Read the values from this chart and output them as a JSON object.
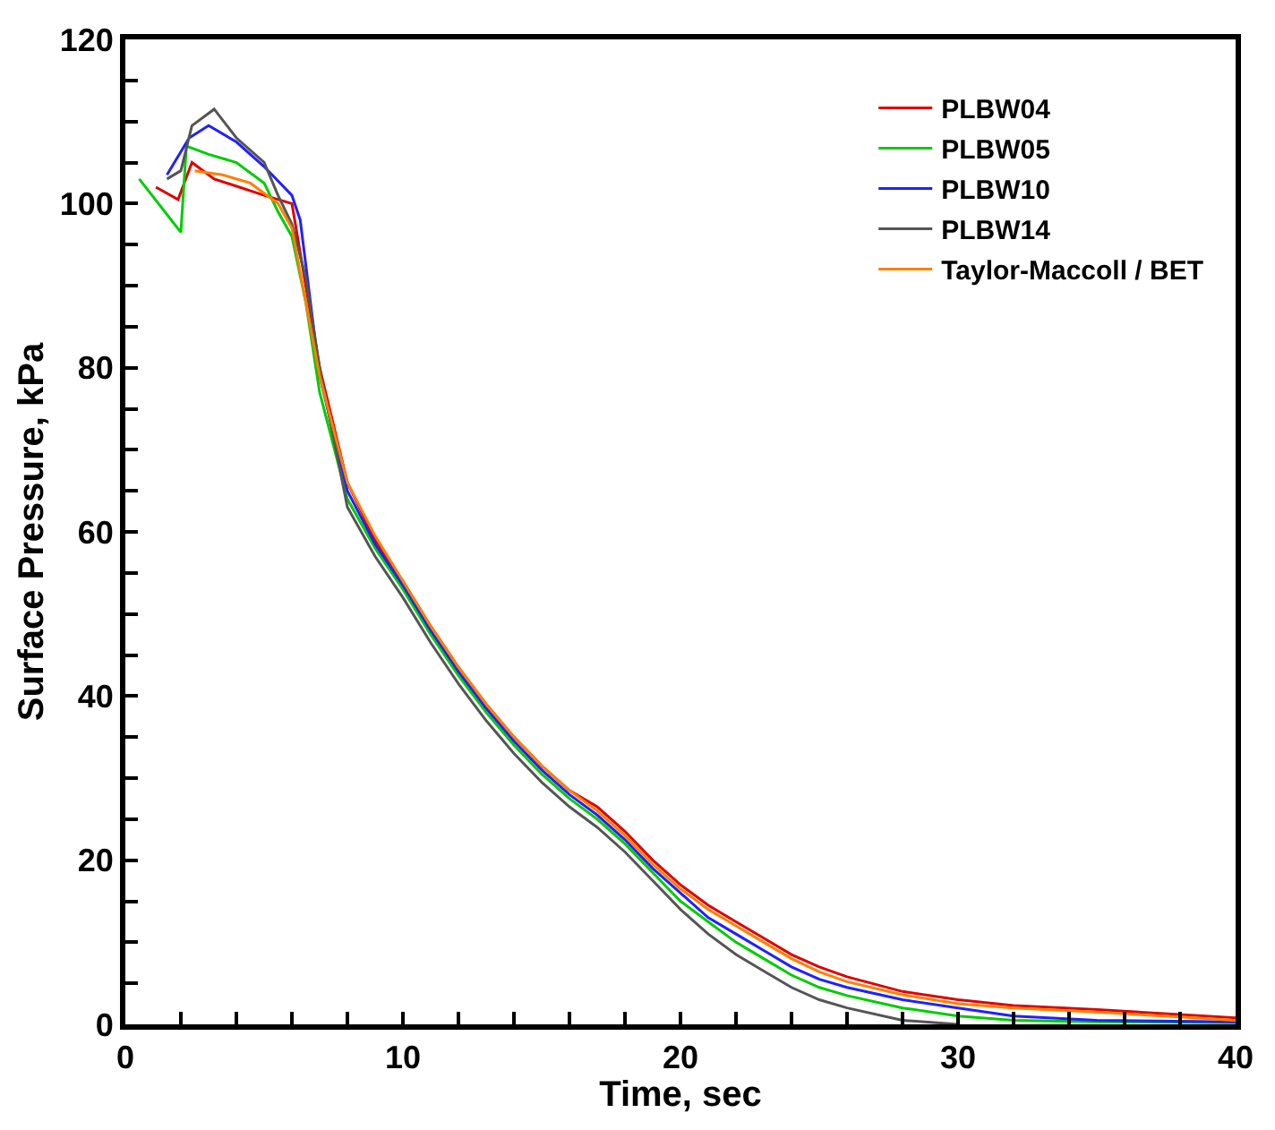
{
  "chart_data": {
    "type": "line",
    "xlabel": "Time, sec",
    "ylabel": "Surface Pressure, kPa",
    "xlim": [
      0,
      40
    ],
    "ylim": [
      0,
      120
    ],
    "xticks": [
      0,
      {
        "value": 2,
        "label": null
      },
      {
        "value": 4,
        "label": null
      },
      {
        "value": 6,
        "label": null
      },
      {
        "value": 8,
        "label": null
      },
      10,
      {
        "value": 12,
        "label": null
      },
      {
        "value": 14,
        "label": null
      },
      {
        "value": 16,
        "label": null
      },
      {
        "value": 18,
        "label": null
      },
      20,
      {
        "value": 22,
        "label": null
      },
      {
        "value": 24,
        "label": null
      },
      {
        "value": 26,
        "label": null
      },
      {
        "value": 28,
        "label": null
      },
      30,
      {
        "value": 32,
        "label": null
      },
      {
        "value": 34,
        "label": null
      },
      {
        "value": 36,
        "label": null
      },
      {
        "value": 38,
        "label": null
      },
      40
    ],
    "yticks": [
      0,
      {
        "value": 5,
        "label": null
      },
      {
        "value": 10,
        "label": null
      },
      {
        "value": 15,
        "label": null
      },
      20,
      {
        "value": 25,
        "label": null
      },
      {
        "value": 30,
        "label": null
      },
      {
        "value": 35,
        "label": null
      },
      40,
      {
        "value": 45,
        "label": null
      },
      {
        "value": 50,
        "label": null
      },
      {
        "value": 55,
        "label": null
      },
      60,
      {
        "value": 65,
        "label": null
      },
      {
        "value": 70,
        "label": null
      },
      {
        "value": 75,
        "label": null
      },
      80,
      {
        "value": 85,
        "label": null
      },
      {
        "value": 90,
        "label": null
      },
      {
        "value": 95,
        "label": null
      },
      100,
      {
        "value": 105,
        "label": null
      },
      {
        "value": 110,
        "label": null
      },
      {
        "value": 115,
        "label": null
      },
      120
    ],
    "grid": false,
    "legend": "top right",
    "marker": "none",
    "line_style": "solid",
    "series": [
      {
        "name": "PLBW04",
        "color": "#e00000",
        "x": [
          1.1,
          1.9,
          2.4,
          3.2,
          5,
          6,
          6.5,
          7,
          8,
          9,
          10,
          11,
          12,
          13,
          14,
          15,
          16,
          17,
          18,
          19,
          20,
          21,
          22,
          23,
          24,
          25,
          26,
          28,
          30,
          32,
          35,
          40
        ],
        "values": [
          102,
          100.5,
          105,
          103,
          101,
          100,
          90,
          80,
          66,
          59,
          54,
          48.5,
          43.5,
          39,
          35,
          31.5,
          28.5,
          26.5,
          23.5,
          20,
          17,
          14.5,
          12.5,
          10.5,
          8.5,
          7,
          5.8,
          4,
          3,
          2.3,
          1.8,
          0.8
        ]
      },
      {
        "name": "PLBW05",
        "color": "#00cc00",
        "x": [
          0.5,
          2,
          2.2,
          3,
          4,
          5,
          5.5,
          6,
          6.5,
          7,
          8,
          9,
          10,
          11,
          12,
          13,
          14,
          15,
          16,
          17,
          18,
          19,
          20,
          21,
          22,
          23,
          24,
          25,
          26,
          28,
          30,
          32,
          35,
          40
        ],
        "values": [
          103,
          96.5,
          107,
          106,
          105,
          102.5,
          99,
          96,
          88,
          77,
          64,
          58,
          53,
          47.5,
          42.5,
          38,
          34,
          30.5,
          27.5,
          25,
          22,
          18.5,
          15,
          12.5,
          10,
          8,
          6,
          4.5,
          3.5,
          2,
          1,
          0.5,
          0.3,
          0.2
        ]
      },
      {
        "name": "PLBW10",
        "color": "#2020ff",
        "x": [
          1.5,
          2.3,
          3,
          4,
          5,
          6,
          6.3,
          7,
          8,
          9,
          10,
          11,
          12,
          13,
          14,
          15,
          16,
          17,
          18,
          19,
          20,
          21,
          22,
          23,
          24,
          25,
          26,
          28,
          30,
          32,
          35,
          40
        ],
        "values": [
          103.5,
          108,
          109.5,
          107.5,
          104.5,
          101,
          98,
          79,
          65,
          58.5,
          53.5,
          48,
          43,
          38.5,
          34.5,
          31,
          28,
          25.5,
          22.5,
          19,
          16,
          13,
          11,
          9,
          7,
          5.5,
          4.5,
          3,
          2,
          1,
          0.5,
          0.3
        ]
      },
      {
        "name": "PLBW14",
        "color": "#555555",
        "x": [
          1.5,
          2,
          2.4,
          3.2,
          4,
          5,
          5.5,
          6,
          6.5,
          7,
          8,
          9,
          10,
          11,
          12,
          13,
          14,
          15,
          16,
          17,
          18,
          19,
          20,
          21,
          22,
          23,
          24,
          25,
          26,
          28,
          30
        ],
        "values": [
          103,
          104,
          109.5,
          111.5,
          108,
          105,
          101,
          97.5,
          91,
          80,
          63,
          57,
          52,
          46.5,
          41.5,
          37,
          33,
          29.5,
          26.5,
          24,
          21,
          17.5,
          14,
          11,
          8.5,
          6.5,
          4.5,
          3,
          2,
          0.5,
          0
        ]
      },
      {
        "name": "Taylor-Maccoll / BET",
        "color": "#ff8000",
        "x": [
          2.5,
          3.5,
          4.5,
          5.5,
          6,
          6.5,
          7,
          8,
          9,
          10,
          11,
          12,
          13,
          14,
          15,
          16,
          17,
          18,
          19,
          20,
          21,
          22,
          23,
          24,
          25,
          26,
          28,
          30,
          32,
          35,
          40
        ],
        "values": [
          104,
          103.5,
          102.5,
          100,
          97,
          88,
          79,
          66,
          59.5,
          54,
          48.5,
          43.5,
          39,
          35,
          31.5,
          28.5,
          26,
          23,
          19.5,
          16.5,
          14,
          12,
          10,
          8,
          6.4,
          5.2,
          3.6,
          2.5,
          2,
          1.5,
          0.5
        ]
      }
    ]
  }
}
